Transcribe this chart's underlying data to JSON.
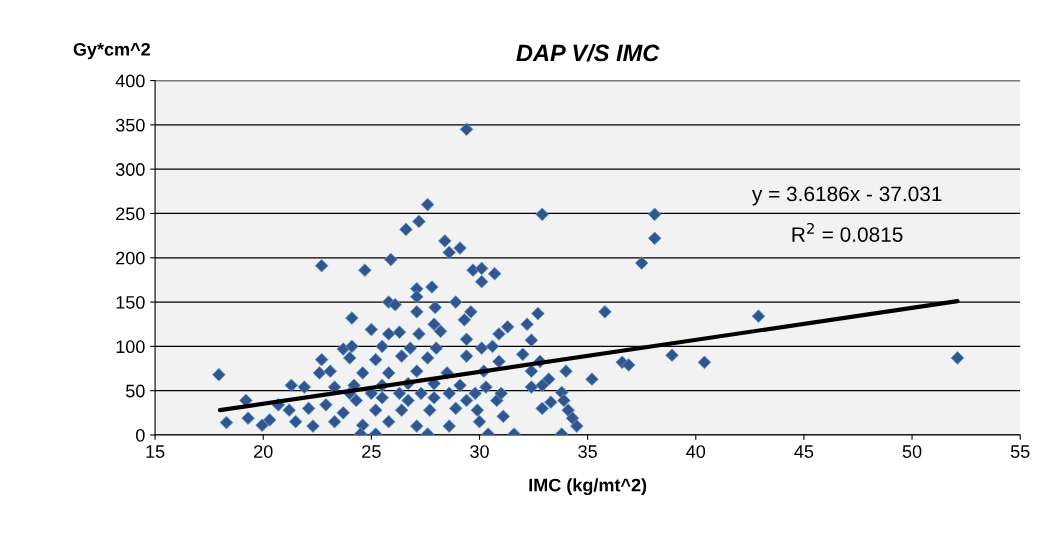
{
  "chart_data": {
    "type": "scatter",
    "title": "DAP V/S IMC",
    "ylabel": "Gy*cm^2",
    "xlabel": "IMC (kg/mt^2)",
    "xlim": [
      15,
      55
    ],
    "xticks": [
      15,
      20,
      25,
      30,
      35,
      40,
      45,
      50,
      55
    ],
    "ylim": [
      0,
      400
    ],
    "yticks": [
      0,
      50,
      100,
      150,
      200,
      250,
      300,
      350,
      400
    ],
    "grid": "y",
    "marker": "diamond",
    "annotations": [
      "y = 3.6186x - 37.031",
      "R$^{2}$ = 0.0815"
    ],
    "series": [
      {
        "color": "#34548e",
        "x": [
          29.4,
          27.6,
          32.9,
          27.2,
          26.6,
          28.4,
          29.1,
          28.6,
          25.9,
          22.7,
          24.7,
          29.7,
          30.1,
          30.7,
          30.1,
          27.1,
          27.8,
          27.1,
          25.8,
          26.1,
          28.9,
          27.95,
          29.6,
          29.3,
          32.7,
          24.1,
          27.1,
          32.2,
          25.0,
          25.8,
          26.3,
          27.2,
          27.9,
          28.2,
          31.3,
          30.9,
          32.4,
          29.4,
          23.7,
          24.1,
          25.5,
          26.8,
          28.0,
          30.1,
          30.6,
          22.7,
          32.0,
          24.0,
          25.2,
          26.4,
          27.6,
          29.4,
          30.9,
          32.8,
          22.6,
          23.1,
          24.6,
          25.8,
          27.1,
          28.5,
          30.2,
          32.4,
          34.0,
          35.2,
          17.95,
          33.2,
          21.3,
          21.9,
          23.3,
          24.2,
          25.5,
          26.7,
          27.9,
          29.1,
          30.3,
          32.4,
          32.9,
          33.8,
          19.2,
          20.7,
          21.2,
          22.1,
          22.9,
          24.3,
          25.5,
          26.7,
          27.9,
          29.4,
          30.8,
          32.9,
          33.3,
          33.9,
          34.1,
          18.3,
          19.3,
          19.95,
          20.3,
          21.5,
          22.3,
          23.3,
          24.6,
          25.8,
          27.1,
          28.6,
          30.0,
          31.1,
          34.3,
          34.5,
          24.5,
          25.2,
          27.6,
          30.4,
          31.6,
          33.8,
          23.7,
          25.2,
          26.4,
          27.7,
          28.9,
          29.9,
          24.0,
          25.0,
          26.3,
          27.3,
          28.6,
          29.8,
          31.0,
          38.1,
          38.1,
          37.5,
          35.8,
          42.9,
          38.9,
          36.6,
          36.9,
          40.4,
          52.1
        ],
        "values": [
          345,
          260,
          249,
          241,
          232,
          219,
          211,
          206,
          198,
          191,
          186,
          186,
          188,
          182,
          173,
          165,
          167,
          156,
          150,
          147,
          150,
          144,
          139,
          130,
          137,
          132,
          139,
          125,
          119,
          114,
          116,
          114,
          125,
          117,
          122,
          114,
          107,
          108,
          97,
          100,
          100,
          98,
          98,
          98,
          100,
          85,
          91,
          87,
          85,
          89,
          87,
          89,
          83,
          83,
          70,
          72,
          70,
          70,
          72,
          70,
          72,
          72,
          72,
          63,
          68,
          63,
          56,
          54,
          54,
          56,
          56,
          58,
          58,
          56,
          54,
          54,
          56,
          48,
          39,
          34,
          28,
          30,
          34,
          39,
          42,
          39,
          42,
          39,
          39,
          30,
          37,
          39,
          28,
          14,
          19,
          11,
          17,
          15,
          10,
          15,
          11,
          15,
          10,
          10,
          15,
          21,
          19,
          10,
          1,
          1,
          1,
          1,
          1,
          1,
          25,
          28,
          28,
          28,
          30,
          28,
          47,
          47,
          47,
          47,
          47,
          47,
          47,
          249,
          222,
          194,
          139,
          134,
          90,
          82,
          79,
          82,
          87
        ]
      },
      {
        "type": "line",
        "marker": "none",
        "color": "#000000",
        "x": [
          18.0,
          52.1
        ],
        "values": [
          28,
          151
        ]
      }
    ]
  }
}
